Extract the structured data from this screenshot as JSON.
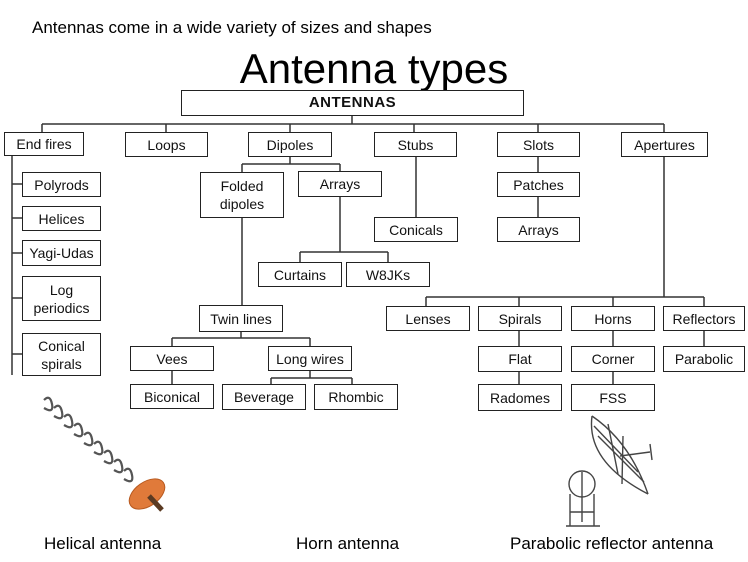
{
  "header": {
    "caption": "Antennas come in a wide variety of sizes and shapes",
    "title": "Antenna types"
  },
  "tree": {
    "root": "ANTENNAS",
    "end_fires": "End fires",
    "loops": "Loops",
    "dipoles": "Dipoles",
    "stubs": "Stubs",
    "slots": "Slots",
    "apertures": "Apertures",
    "polyrods": "Polyrods",
    "helices": "Helices",
    "yagi_udas": "Yagi-Udas",
    "log_periodics": "Log periodics",
    "conical_spirals": "Conical spirals",
    "folded_dipoles": "Folded dipoles",
    "dipole_arrays": "Arrays",
    "curtains": "Curtains",
    "w8jks": "W8JKs",
    "conicals": "Conicals",
    "patches": "Patches",
    "slot_arrays": "Arrays",
    "twin_lines": "Twin lines",
    "vees": "Vees",
    "long_wires": "Long wires",
    "biconical": "Biconical",
    "beverage": "Beverage",
    "rhombic": "Rhombic",
    "lenses": "Lenses",
    "spirals": "Spirals",
    "horns": "Horns",
    "reflectors": "Reflectors",
    "flat": "Flat",
    "corner": "Corner",
    "parabolic": "Parabolic",
    "radomes": "Radomes",
    "fss": "FSS"
  },
  "captions": {
    "helical": "Helical antenna",
    "horn": "Horn antenna",
    "parabolic": "Parabolic reflector antenna"
  },
  "colors": {
    "line": "#333333",
    "helix_disc": "#e07a3a",
    "helix_post": "#5a3a22"
  }
}
